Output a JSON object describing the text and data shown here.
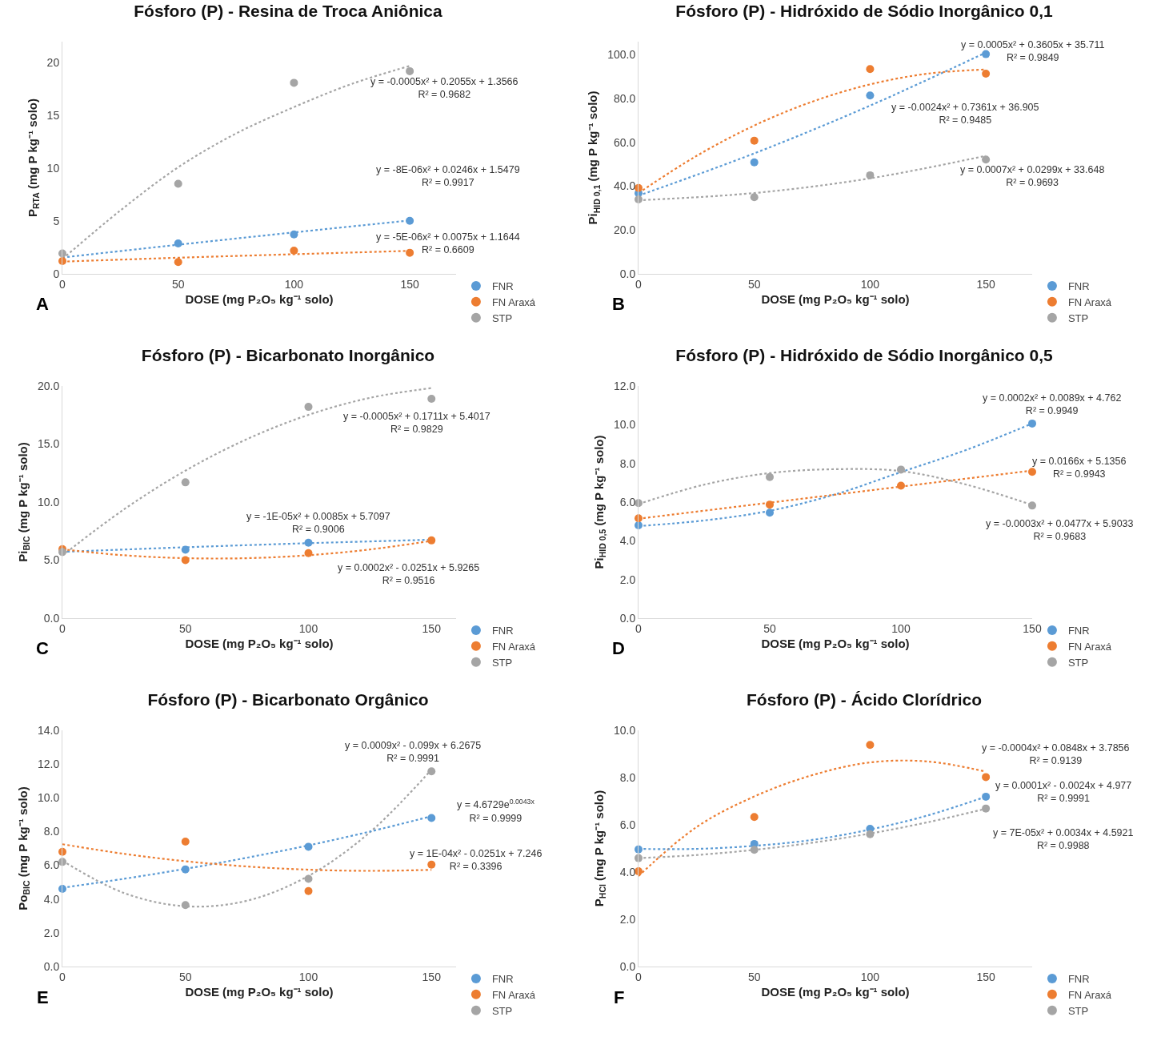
{
  "chart_data": [
    {
      "type": "scatter",
      "title": "Fósforo (P) - Resina de Troca Aniônica",
      "xlabel": "DOSE (mg P₂O₅ kg⁻¹ solo)",
      "ylabel": "P$_{RTA}$ (mg P kg⁻¹ solo)",
      "x": [
        0,
        50,
        100,
        150
      ],
      "xlim": [
        0,
        170
      ],
      "xticks": [
        0,
        50,
        100,
        150
      ],
      "ylim": [
        0,
        22
      ],
      "yticks": [
        0,
        5,
        10,
        15,
        20
      ],
      "grid": false,
      "legend": "bottom right",
      "marker": "circle",
      "series": [
        {
          "name": "FNR",
          "color": "#5b9bd5",
          "values": [
            null,
            2.88,
            3.73,
            5.02
          ]
        },
        {
          "name": "FN Araxá",
          "color": "#ed7d31",
          "values": [
            1.22,
            1.12,
            2.2,
            2.0
          ]
        },
        {
          "name": "STP",
          "color": "#a5a5a5",
          "values": [
            1.93,
            8.54,
            18.1,
            19.2
          ]
        },
        {
          "type": "line",
          "color": "#5b9bd5",
          "x": [
            0,
            50,
            100,
            150
          ],
          "values": [
            1.55,
            2.76,
            3.93,
            5.06
          ],
          "marker": "none",
          "line_style": "dotted"
        },
        {
          "type": "line",
          "color": "#ed7d31",
          "x": [
            0,
            50,
            100,
            150
          ],
          "values": [
            1.16,
            1.53,
            1.86,
            2.18
          ],
          "marker": "none",
          "line_style": "dotted"
        },
        {
          "type": "line",
          "color": "#a5a5a5",
          "x": [
            0,
            25,
            50,
            75,
            100,
            125,
            150
          ],
          "values": [
            1.4,
            6.0,
            10.1,
            13.3,
            15.8,
            18.0,
            19.7
          ],
          "marker": "none",
          "line_style": "dotted"
        }
      ],
      "annotations": [
        "y = -0.0005x² + 0.2055x + 1.3566\nR² = 0.9682",
        "y = -8E-06x² + 0.0246x + 1.5479\nR² = 0.9917",
        "y = -5E-06x² + 0.0075x + 1.1644\nR² = 0.6609",
        "A"
      ]
    },
    {
      "type": "scatter",
      "title": "Fósforo (P) - Hidróxido de Sódio Inorgânico 0,1",
      "xlabel": "DOSE (mg P₂O₅ kg⁻¹ solo)",
      "ylabel": "Pi$_{HID 0,1}$ (mg P kg⁻¹ solo)",
      "x": [
        0,
        50,
        100,
        150
      ],
      "xlim": [
        0,
        170
      ],
      "xticks": [
        0,
        50,
        100,
        150
      ],
      "ylim": [
        0,
        106
      ],
      "yticks": [
        {
          "value": 0,
          "label": "0.0"
        },
        {
          "value": 20,
          "label": "20.0"
        },
        {
          "value": 40,
          "label": "40.0"
        },
        {
          "value": 60,
          "label": "60.0"
        },
        {
          "value": 80,
          "label": "80.0"
        },
        {
          "value": 100,
          "label": "100.0"
        }
      ],
      "grid": false,
      "legend": "bottom right",
      "marker": "circle",
      "series": [
        {
          "name": "FNR",
          "color": "#5b9bd5",
          "values": [
            36.8,
            50.9,
            81.4,
            100.3
          ]
        },
        {
          "name": "FN Araxá",
          "color": "#ed7d31",
          "values": [
            39.2,
            60.8,
            93.5,
            91.4
          ]
        },
        {
          "name": "STP",
          "color": "#a5a5a5",
          "values": [
            34.0,
            35.0,
            45.0,
            52.2
          ]
        },
        {
          "type": "line",
          "color": "#5b9bd5",
          "x": [
            0,
            50,
            100,
            150
          ],
          "values": [
            35.7,
            55.0,
            76.8,
            101.0
          ],
          "marker": "none",
          "line_style": "dotted"
        },
        {
          "type": "line",
          "color": "#ed7d31",
          "x": [
            0,
            25,
            50,
            75,
            100,
            125,
            150
          ],
          "values": [
            36.9,
            53.8,
            67.7,
            78.6,
            86.5,
            91.4,
            93.3
          ],
          "marker": "none",
          "line_style": "dotted"
        },
        {
          "type": "line",
          "color": "#a5a5a5",
          "x": [
            0,
            50,
            100,
            150
          ],
          "values": [
            33.6,
            36.9,
            43.6,
            53.9
          ],
          "marker": "none",
          "line_style": "dotted"
        }
      ],
      "annotations": [
        "y = 0.0005x² + 0.3605x + 35.711\nR² = 0.9849",
        "y = -0.0024x² + 0.7361x + 36.905\nR² = 0.9485",
        "y = 0.0007x² + 0.0299x + 33.648\nR² = 0.9693",
        "B"
      ]
    },
    {
      "type": "scatter",
      "title": "Fósforo (P) - Bicarbonato Inorgânico",
      "xlabel": "DOSE (mg P₂O₅ kg⁻¹ solo)",
      "ylabel": "Pi$_{BIC}$ (mg P kg⁻¹ solo)",
      "x": [
        0,
        50,
        100,
        150
      ],
      "xlim": [
        0,
        160
      ],
      "xticks": [
        0,
        50,
        100,
        150
      ],
      "ylim": [
        0,
        20
      ],
      "yticks": [
        {
          "value": 0,
          "label": "0.0"
        },
        {
          "value": 5,
          "label": "5.0"
        },
        {
          "value": 10,
          "label": "10.0"
        },
        {
          "value": 15,
          "label": "15.0"
        },
        {
          "value": 20,
          "label": "20.0"
        }
      ],
      "grid": false,
      "legend": "bottom right",
      "marker": "circle",
      "series": [
        {
          "name": "FNR",
          "color": "#5b9bd5",
          "values": [
            null,
            5.9,
            6.5,
            null
          ]
        },
        {
          "name": "FN Araxá",
          "color": "#ed7d31",
          "values": [
            5.95,
            5.0,
            5.6,
            6.7
          ]
        },
        {
          "name": "STP",
          "color": "#a5a5a5",
          "values": [
            5.7,
            11.7,
            18.2,
            18.9
          ]
        },
        {
          "type": "line",
          "color": "#a5a5a5",
          "x": [
            0,
            25,
            50,
            75,
            100,
            125,
            150
          ],
          "values": [
            5.4,
            9.37,
            12.71,
            15.42,
            17.51,
            18.98,
            19.82
          ],
          "marker": "none",
          "line_style": "dotted"
        },
        {
          "type": "line",
          "color": "#5b9bd5",
          "x": [
            0,
            50,
            100,
            150
          ],
          "values": [
            5.71,
            6.11,
            6.46,
            6.76
          ],
          "marker": "none",
          "line_style": "dotted"
        },
        {
          "type": "line",
          "color": "#ed7d31",
          "x": [
            0,
            25,
            50,
            75,
            100,
            125,
            150
          ],
          "values": [
            5.93,
            5.42,
            5.17,
            5.17,
            5.42,
            5.92,
            6.66
          ],
          "marker": "none",
          "line_style": "dotted"
        }
      ],
      "annotations": [
        "y = -0.0005x² + 0.1711x + 5.4017\nR² = 0.9829",
        "y = -1E-05x² + 0.0085x + 5.7097\nR² = 0.9006",
        "y = 0.0002x² - 0.0251x + 5.9265\nR² = 0.9516",
        "C"
      ]
    },
    {
      "type": "scatter",
      "title": "Fósforo (P) - Hidróxido de Sódio Inorgânico 0,5",
      "xlabel": "DOSE (mg P₂O₅ kg⁻¹ solo)",
      "ylabel": "Pi$_{HID 0,5}$ (mg P kg⁻¹ solo)",
      "x": [
        0,
        50,
        100,
        150
      ],
      "xlim": [
        0,
        150
      ],
      "xticks": [
        0,
        50,
        100,
        150
      ],
      "ylim": [
        0,
        12
      ],
      "yticks": [
        {
          "value": 0,
          "label": "0.0"
        },
        {
          "value": 2,
          "label": "2.0"
        },
        {
          "value": 4,
          "label": "4.0"
        },
        {
          "value": 6,
          "label": "6.0"
        },
        {
          "value": 8,
          "label": "8.0"
        },
        {
          "value": 10,
          "label": "10.0"
        },
        {
          "value": 12,
          "label": "12.0"
        }
      ],
      "grid": false,
      "legend": "bottom right",
      "marker": "circle",
      "series": [
        {
          "name": "FNR",
          "color": "#5b9bd5",
          "values": [
            4.8,
            5.45,
            null,
            10.06
          ]
        },
        {
          "name": "FN Araxá",
          "color": "#ed7d31",
          "values": [
            5.16,
            5.87,
            6.85,
            7.56
          ]
        },
        {
          "name": "STP",
          "color": "#a5a5a5",
          "values": [
            5.95,
            7.29,
            7.68,
            5.82
          ]
        },
        {
          "type": "line",
          "color": "#5b9bd5",
          "x": [
            0,
            25,
            50,
            75,
            100,
            125,
            150
          ],
          "values": [
            4.76,
            5.05,
            5.55,
            6.4,
            7.55,
            8.7,
            10.06
          ],
          "marker": "none",
          "line_style": "dotted"
        },
        {
          "type": "line",
          "color": "#ed7d31",
          "x": [
            0,
            150
          ],
          "values": [
            5.14,
            7.63
          ],
          "marker": "none",
          "line_style": "dotted"
        },
        {
          "type": "line",
          "color": "#a5a5a5",
          "x": [
            0,
            25,
            50,
            75,
            100,
            125,
            150
          ],
          "values": [
            5.9,
            6.9,
            7.5,
            7.7,
            7.6,
            6.9,
            5.85
          ],
          "marker": "none",
          "line_style": "dotted"
        }
      ],
      "annotations": [
        "y = 0.0002x² + 0.0089x + 4.762\nR² = 0.9949",
        "y = 0.0166x + 5.1356\nR² = 0.9943",
        "y = -0.0003x² + 0.0477x + 5.9033\nR² = 0.9683",
        "D"
      ]
    },
    {
      "type": "scatter",
      "title": "Fósforo (P) - Bicarbonato Orgânico",
      "xlabel": "DOSE (mg P₂O₅ kg⁻¹ solo)",
      "ylabel": "Po$_{BIC}$ (mg P kg⁻¹ solo)",
      "x": [
        0,
        50,
        100,
        150
      ],
      "xlim": [
        0,
        160
      ],
      "xticks": [
        0,
        50,
        100,
        150
      ],
      "ylim": [
        0,
        14
      ],
      "yticks": [
        {
          "value": 0,
          "label": "0.0"
        },
        {
          "value": 2,
          "label": "2.0"
        },
        {
          "value": 4,
          "label": "4.0"
        },
        {
          "value": 6,
          "label": "6.0"
        },
        {
          "value": 8,
          "label": "8.0"
        },
        {
          "value": 10,
          "label": "10.0"
        },
        {
          "value": 12,
          "label": "12.0"
        },
        {
          "value": 14,
          "label": "14.0"
        }
      ],
      "grid": false,
      "legend": "bottom right",
      "marker": "circle",
      "series": [
        {
          "name": "FNR",
          "color": "#5b9bd5",
          "values": [
            4.6,
            5.76,
            7.1,
            8.8
          ]
        },
        {
          "name": "FN Araxá",
          "color": "#ed7d31",
          "values": [
            6.8,
            7.4,
            4.47,
            6.04
          ]
        },
        {
          "name": "STP",
          "color": "#a5a5a5",
          "values": [
            6.2,
            3.64,
            5.2,
            11.57
          ]
        },
        {
          "type": "line",
          "color": "#a5a5a5",
          "x": [
            0,
            25,
            50,
            75,
            100,
            125,
            150
          ],
          "values": [
            6.27,
            4.36,
            3.57,
            3.9,
            5.37,
            7.96,
            11.67
          ],
          "marker": "none",
          "line_style": "dotted"
        },
        {
          "type": "line",
          "color": "#5b9bd5",
          "x": [
            0,
            25,
            50,
            75,
            100,
            125,
            150
          ],
          "values": [
            4.67,
            5.2,
            5.79,
            6.45,
            7.18,
            8.0,
            8.91
          ],
          "marker": "none",
          "line_style": "dotted"
        },
        {
          "type": "line",
          "color": "#ed7d31",
          "x": [
            0,
            25,
            50,
            75,
            100,
            125,
            150
          ],
          "values": [
            7.25,
            6.68,
            6.24,
            5.93,
            5.74,
            5.67,
            5.73
          ],
          "marker": "none",
          "line_style": "dotted"
        }
      ],
      "annotations": [
        "y = 0.0009x² - 0.099x + 6.2675\nR² = 0.9991",
        "y = 4.6729e$^{0.0043x}$\nR² = 0.9999",
        "y = 1E-04x² - 0.0251x + 7.246\nR² = 0.3396",
        "E"
      ]
    },
    {
      "type": "scatter",
      "title": "Fósforo (P) - Ácido Clorídrico",
      "xlabel": "DOSE (mg P₂O₅ kg⁻¹ solo)",
      "ylabel": "P$_{HCl}$ (mg P kg⁻¹ solo)",
      "x": [
        0,
        50,
        100,
        150
      ],
      "xlim": [
        0,
        170
      ],
      "xticks": [
        0,
        50,
        100,
        150
      ],
      "ylim": [
        0,
        10
      ],
      "yticks": [
        {
          "value": 0,
          "label": "0.0"
        },
        {
          "value": 2,
          "label": "2.0"
        },
        {
          "value": 4,
          "label": "4.0"
        },
        {
          "value": 6,
          "label": "6.0"
        },
        {
          "value": 8,
          "label": "8.0"
        },
        {
          "value": 10,
          "label": "10.0"
        }
      ],
      "grid": false,
      "legend": "bottom right",
      "marker": "circle",
      "series": [
        {
          "name": "FNR",
          "color": "#5b9bd5",
          "values": [
            4.96,
            5.19,
            5.83,
            7.19
          ]
        },
        {
          "name": "FN Araxá",
          "color": "#ed7d31",
          "values": [
            4.03,
            6.33,
            9.38,
            8.02
          ]
        },
        {
          "name": "STP",
          "color": "#a5a5a5",
          "values": [
            4.59,
            4.94,
            5.6,
            6.69
          ]
        },
        {
          "type": "line",
          "color": "#ed7d31",
          "x": [
            0,
            25,
            50,
            75,
            100,
            125,
            150
          ],
          "values": [
            3.83,
            5.9,
            7.2,
            8.1,
            8.64,
            8.68,
            8.25
          ],
          "marker": "none",
          "line_style": "dotted"
        },
        {
          "type": "line",
          "color": "#5b9bd5",
          "x": [
            0,
            25,
            50,
            75,
            100,
            125,
            150
          ],
          "values": [
            4.98,
            4.98,
            5.11,
            5.36,
            5.8,
            6.4,
            7.19
          ],
          "marker": "none",
          "line_style": "dotted"
        },
        {
          "type": "line",
          "color": "#a5a5a5",
          "x": [
            0,
            25,
            50,
            75,
            100,
            125,
            150
          ],
          "values": [
            4.59,
            4.72,
            4.94,
            5.24,
            5.63,
            6.11,
            6.68
          ],
          "marker": "none",
          "line_style": "dotted"
        }
      ],
      "annotations": [
        "y = -0.0004x² + 0.0848x + 3.7856\nR² = 0.9139",
        "y = 0.0001x² - 0.0024x + 4.977\nR² = 0.9991",
        "y = 7E-05x² + 0.0034x + 4.5921\nR² = 0.9988",
        "F"
      ]
    }
  ]
}
